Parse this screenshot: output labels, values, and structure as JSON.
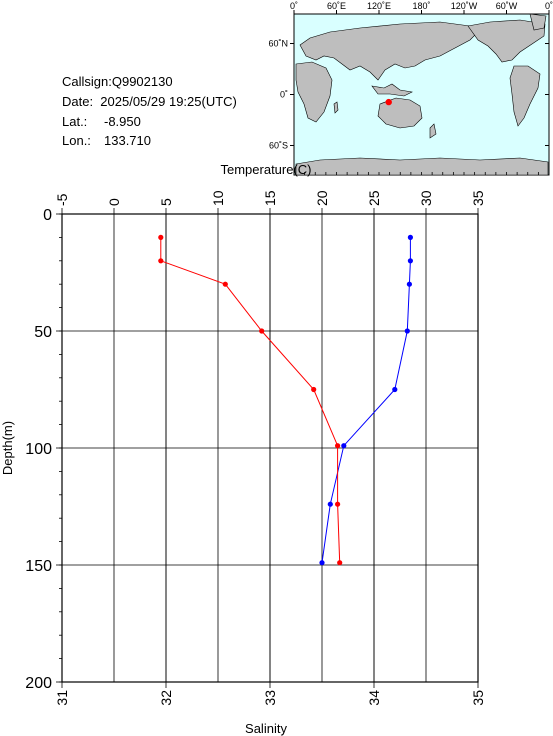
{
  "station": {
    "callsign": "Callsign:Q9902130",
    "date": "Date:  2025/05/29 19:25(UTC)",
    "lat_label": "Lat.:",
    "lat_value": "-8.950",
    "lon_label": "Lon.:",
    "lon_value": "133.710"
  },
  "map": {
    "lon_ticks": [
      "0˚",
      "60˚E",
      "120˚E",
      "180˚",
      "120˚W",
      "60˚W",
      "0˚"
    ],
    "lat_ticks": [
      "60˚N",
      "0˚",
      "60˚S"
    ],
    "station_lat": -8.95,
    "station_lon": 133.71,
    "colors": {
      "ocean": "#d9ffff",
      "land": "#bebebe",
      "marker": "#ff0000"
    }
  },
  "chart_data": {
    "type": "line",
    "title": "",
    "ylabel": "Depth(m)",
    "ylim": [
      0,
      200
    ],
    "y_inverted": true,
    "y_ticks": [
      "0",
      "50",
      "100",
      "150",
      "200"
    ],
    "top_axis": {
      "label": "Temperature(C)",
      "lim": [
        -5,
        35
      ],
      "ticks": [
        "-5",
        "0",
        "5",
        "10",
        "15",
        "20",
        "25",
        "30",
        "35"
      ]
    },
    "bottom_axis": {
      "label": "Salinity",
      "lim": [
        31,
        35
      ],
      "ticks": [
        "31",
        "32",
        "33",
        "34",
        "35"
      ]
    },
    "grid": true,
    "series": [
      {
        "variable": "temperature",
        "axis": "top",
        "color": "#0000ff",
        "points": [
          {
            "value": 28.5,
            "depth": 10
          },
          {
            "value": 28.5,
            "depth": 20
          },
          {
            "value": 28.4,
            "depth": 30
          },
          {
            "value": 28.2,
            "depth": 50
          },
          {
            "value": 27.0,
            "depth": 75
          },
          {
            "value": 22.1,
            "depth": 99
          },
          {
            "value": 20.8,
            "depth": 124
          },
          {
            "value": 20.0,
            "depth": 149
          }
        ]
      },
      {
        "variable": "salinity",
        "axis": "bottom",
        "color": "#ff0000",
        "points": [
          {
            "value": 31.95,
            "depth": 10
          },
          {
            "value": 31.95,
            "depth": 20
          },
          {
            "value": 32.57,
            "depth": 30
          },
          {
            "value": 32.92,
            "depth": 50
          },
          {
            "value": 33.42,
            "depth": 75
          },
          {
            "value": 33.65,
            "depth": 99
          },
          {
            "value": 33.65,
            "depth": 124
          },
          {
            "value": 33.67,
            "depth": 149
          }
        ]
      }
    ]
  }
}
